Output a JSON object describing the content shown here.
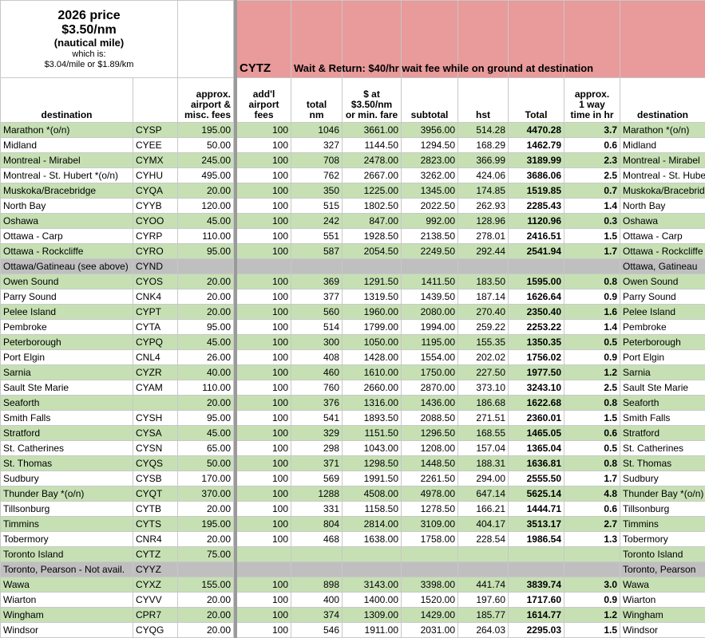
{
  "top": {
    "title": "2026 price",
    "price": "$3.50/nm",
    "unit": "(nautical mile)",
    "which": "which is:",
    "conversion": "$3.04/mile or $1.89/km",
    "airport": "CYTZ",
    "note": "Wait & Return: $40/hr wait fee while on ground at destination",
    "fill": "#e99a9a"
  },
  "headers": [
    "destination",
    "",
    "approx.\nairport &\nmisc. fees",
    "add'l\nairport\nfees",
    "total\nnm",
    "$ at\n$3.50/nm\nor min. fare",
    "subtotal",
    "hst",
    "Total",
    "approx.\n1 way\ntime in hr",
    "destination"
  ],
  "rows": [
    {
      "fill": "#c6e0b4",
      "destination": "Marathon *(o/n)",
      "code": "CYSP",
      "fees": "195.00",
      "addl": "100",
      "nm": "1046",
      "fare": "3661.00",
      "subtotal": "3956.00",
      "hst": "514.28",
      "total": "4470.28",
      "time": "3.7",
      "destination2": "Marathon *(o/n)"
    },
    {
      "fill": "#ffffff",
      "destination": "Midland",
      "code": "CYEE",
      "fees": "50.00",
      "addl": "100",
      "nm": "327",
      "fare": "1144.50",
      "subtotal": "1294.50",
      "hst": "168.29",
      "total": "1462.79",
      "time": "0.6",
      "destination2": "Midland"
    },
    {
      "fill": "#c6e0b4",
      "destination": "Montreal - Mirabel",
      "code": "CYMX",
      "fees": "245.00",
      "addl": "100",
      "nm": "708",
      "fare": "2478.00",
      "subtotal": "2823.00",
      "hst": "366.99",
      "total": "3189.99",
      "time": "2.3",
      "destination2": "Montreal - Mirabel"
    },
    {
      "fill": "#ffffff",
      "destination": "Montreal - St. Hubert *(o/n)",
      "code": "CYHU",
      "fees": "495.00",
      "addl": "100",
      "nm": "762",
      "fare": "2667.00",
      "subtotal": "3262.00",
      "hst": "424.06",
      "total": "3686.06",
      "time": "2.5",
      "destination2": "Montreal - St. Hube"
    },
    {
      "fill": "#c6e0b4",
      "destination": "Muskoka/Bracebridge",
      "code": "CYQA",
      "fees": "20.00",
      "addl": "100",
      "nm": "350",
      "fare": "1225.00",
      "subtotal": "1345.00",
      "hst": "174.85",
      "total": "1519.85",
      "time": "0.7",
      "destination2": "Muskoka/Bracebrid"
    },
    {
      "fill": "#ffffff",
      "destination": "North Bay",
      "code": "CYYB",
      "fees": "120.00",
      "addl": "100",
      "nm": "515",
      "fare": "1802.50",
      "subtotal": "2022.50",
      "hst": "262.93",
      "total": "2285.43",
      "time": "1.4",
      "destination2": "North Bay"
    },
    {
      "fill": "#c6e0b4",
      "destination": "Oshawa",
      "code": "CYOO",
      "fees": "45.00",
      "addl": "100",
      "nm": "242",
      "fare": "847.00",
      "subtotal": "992.00",
      "hst": "128.96",
      "total": "1120.96",
      "time": "0.3",
      "destination2": "Oshawa"
    },
    {
      "fill": "#ffffff",
      "destination": "Ottawa - Carp",
      "code": "CYRP",
      "fees": "110.00",
      "addl": "100",
      "nm": "551",
      "fare": "1928.50",
      "subtotal": "2138.50",
      "hst": "278.01",
      "total": "2416.51",
      "time": "1.5",
      "destination2": "Ottawa - Carp"
    },
    {
      "fill": "#c6e0b4",
      "destination": "Ottawa - Rockcliffe",
      "code": "CYRO",
      "fees": "95.00",
      "addl": "100",
      "nm": "587",
      "fare": "2054.50",
      "subtotal": "2249.50",
      "hst": "292.44",
      "total": "2541.94",
      "time": "1.7",
      "destination2": "Ottawa - Rockcliffe"
    },
    {
      "fill": "#bfbfbf",
      "destination": "Ottawa/Gatineau (see above)",
      "code": "CYND",
      "destination2": "Ottawa, Gatineau"
    },
    {
      "fill": "#c6e0b4",
      "destination": "Owen Sound",
      "code": "CYOS",
      "fees": "20.00",
      "addl": "100",
      "nm": "369",
      "fare": "1291.50",
      "subtotal": "1411.50",
      "hst": "183.50",
      "total": "1595.00",
      "time": "0.8",
      "destination2": "Owen Sound"
    },
    {
      "fill": "#ffffff",
      "destination": "Parry Sound",
      "code": "CNK4",
      "fees": "20.00",
      "addl": "100",
      "nm": "377",
      "fare": "1319.50",
      "subtotal": "1439.50",
      "hst": "187.14",
      "total": "1626.64",
      "time": "0.9",
      "destination2": "Parry Sound"
    },
    {
      "fill": "#c6e0b4",
      "destination": "Pelee Island",
      "code": "CYPT",
      "fees": "20.00",
      "addl": "100",
      "nm": "560",
      "fare": "1960.00",
      "subtotal": "2080.00",
      "hst": "270.40",
      "total": "2350.40",
      "time": "1.6",
      "destination2": "Pelee Island"
    },
    {
      "fill": "#ffffff",
      "destination": "Pembroke",
      "code": "CYTA",
      "fees": "95.00",
      "addl": "100",
      "nm": "514",
      "fare": "1799.00",
      "subtotal": "1994.00",
      "hst": "259.22",
      "total": "2253.22",
      "time": "1.4",
      "destination2": "Pembroke"
    },
    {
      "fill": "#c6e0b4",
      "destination": "Peterborough",
      "code": "CYPQ",
      "fees": "45.00",
      "addl": "100",
      "nm": "300",
      "fare": "1050.00",
      "subtotal": "1195.00",
      "hst": "155.35",
      "total": "1350.35",
      "time": "0.5",
      "destination2": "Peterborough"
    },
    {
      "fill": "#ffffff",
      "destination": "Port Elgin",
      "code": "CNL4",
      "fees": "26.00",
      "addl": "100",
      "nm": "408",
      "fare": "1428.00",
      "subtotal": "1554.00",
      "hst": "202.02",
      "total": "1756.02",
      "time": "0.9",
      "destination2": "Port Elgin"
    },
    {
      "fill": "#c6e0b4",
      "destination": "Sarnia",
      "code": "CYZR",
      "fees": "40.00",
      "addl": "100",
      "nm": "460",
      "fare": "1610.00",
      "subtotal": "1750.00",
      "hst": "227.50",
      "total": "1977.50",
      "time": "1.2",
      "destination2": "Sarnia"
    },
    {
      "fill": "#ffffff",
      "destination": "Sault Ste Marie",
      "code": "CYAM",
      "fees": "110.00",
      "addl": "100",
      "nm": "760",
      "fare": "2660.00",
      "subtotal": "2870.00",
      "hst": "373.10",
      "total": "3243.10",
      "time": "2.5",
      "destination2": "Sault Ste Marie"
    },
    {
      "fill": "#c6e0b4",
      "destination": "Seaforth",
      "fees": "20.00",
      "addl": "100",
      "nm": "376",
      "fare": "1316.00",
      "subtotal": "1436.00",
      "hst": "186.68",
      "total": "1622.68",
      "time": "0.8",
      "destination2": "Seaforth"
    },
    {
      "fill": "#ffffff",
      "destination": "Smith Falls",
      "code": "CYSH",
      "fees": "95.00",
      "addl": "100",
      "nm": "541",
      "fare": "1893.50",
      "subtotal": "2088.50",
      "hst": "271.51",
      "total": "2360.01",
      "time": "1.5",
      "destination2": "Smith Falls"
    },
    {
      "fill": "#c6e0b4",
      "destination": "Stratford",
      "code": "CYSA",
      "fees": "45.00",
      "addl": "100",
      "nm": "329",
      "fare": "1151.50",
      "subtotal": "1296.50",
      "hst": "168.55",
      "total": "1465.05",
      "time": "0.6",
      "destination2": "Stratford"
    },
    {
      "fill": "#ffffff",
      "destination": "St. Catherines",
      "code": "CYSN",
      "fees": "65.00",
      "addl": "100",
      "nm": "298",
      "fare": "1043.00",
      "subtotal": "1208.00",
      "hst": "157.04",
      "total": "1365.04",
      "time": "0.5",
      "destination2": "St. Catherines"
    },
    {
      "fill": "#c6e0b4",
      "destination": "St. Thomas",
      "code": "CYQS",
      "fees": "50.00",
      "addl": "100",
      "nm": "371",
      "fare": "1298.50",
      "subtotal": "1448.50",
      "hst": "188.31",
      "total": "1636.81",
      "time": "0.8",
      "destination2": "St. Thomas"
    },
    {
      "fill": "#ffffff",
      "destination": "Sudbury",
      "code": "CYSB",
      "fees": "170.00",
      "addl": "100",
      "nm": "569",
      "fare": "1991.50",
      "subtotal": "2261.50",
      "hst": "294.00",
      "total": "2555.50",
      "time": "1.7",
      "destination2": "Sudbury"
    },
    {
      "fill": "#c6e0b4",
      "destination": "Thunder Bay *(o/n)",
      "code": "CYQT",
      "fees": "370.00",
      "addl": "100",
      "nm": "1288",
      "fare": "4508.00",
      "subtotal": "4978.00",
      "hst": "647.14",
      "total": "5625.14",
      "time": "4.8",
      "destination2": "Thunder Bay *(o/n)"
    },
    {
      "fill": "#ffffff",
      "destination": "Tillsonburg",
      "code": "CYTB",
      "fees": "20.00",
      "addl": "100",
      "nm": "331",
      "fare": "1158.50",
      "subtotal": "1278.50",
      "hst": "166.21",
      "total": "1444.71",
      "time": "0.6",
      "destination2": "Tillsonburg"
    },
    {
      "fill": "#c6e0b4",
      "destination": "Timmins",
      "code": "CYTS",
      "fees": "195.00",
      "addl": "100",
      "nm": "804",
      "fare": "2814.00",
      "subtotal": "3109.00",
      "hst": "404.17",
      "total": "3513.17",
      "time": "2.7",
      "destination2": "Timmins"
    },
    {
      "fill": "#ffffff",
      "destination": "Tobermory",
      "code": "CNR4",
      "fees": "20.00",
      "addl": "100",
      "nm": "468",
      "fare": "1638.00",
      "subtotal": "1758.00",
      "hst": "228.54",
      "total": "1986.54",
      "time": "1.3",
      "destination2": "Tobermory"
    },
    {
      "fill": "#c6e0b4",
      "destination": "Toronto Island",
      "code": "CYTZ",
      "fees": "75.00",
      "destination2": "Toronto Island"
    },
    {
      "fill": "#bfbfbf",
      "destination": "Toronto, Pearson - Not avail.",
      "code": "CYYZ",
      "destination2": "Toronto, Pearson"
    },
    {
      "fill": "#c6e0b4",
      "destination": "Wawa",
      "code": "CYXZ",
      "fees": "155.00",
      "addl": "100",
      "nm": "898",
      "fare": "3143.00",
      "subtotal": "3398.00",
      "hst": "441.74",
      "total": "3839.74",
      "time": "3.0",
      "destination2": "Wawa"
    },
    {
      "fill": "#ffffff",
      "destination": "Wiarton",
      "code": "CYVV",
      "fees": "20.00",
      "addl": "100",
      "nm": "400",
      "fare": "1400.00",
      "subtotal": "1520.00",
      "hst": "197.60",
      "total": "1717.60",
      "time": "0.9",
      "destination2": "Wiarton"
    },
    {
      "fill": "#c6e0b4",
      "destination": "Wingham",
      "code": "CPR7",
      "fees": "20.00",
      "addl": "100",
      "nm": "374",
      "fare": "1309.00",
      "subtotal": "1429.00",
      "hst": "185.77",
      "total": "1614.77",
      "time": "1.2",
      "destination2": "Wingham"
    },
    {
      "fill": "#ffffff",
      "destination": "Windsor",
      "code": "CYQG",
      "fees": "20.00",
      "addl": "100",
      "nm": "546",
      "fare": "1911.00",
      "subtotal": "2031.00",
      "hst": "264.03",
      "total": "2295.03",
      "time": "1.5",
      "destination2": "Windsor"
    }
  ]
}
